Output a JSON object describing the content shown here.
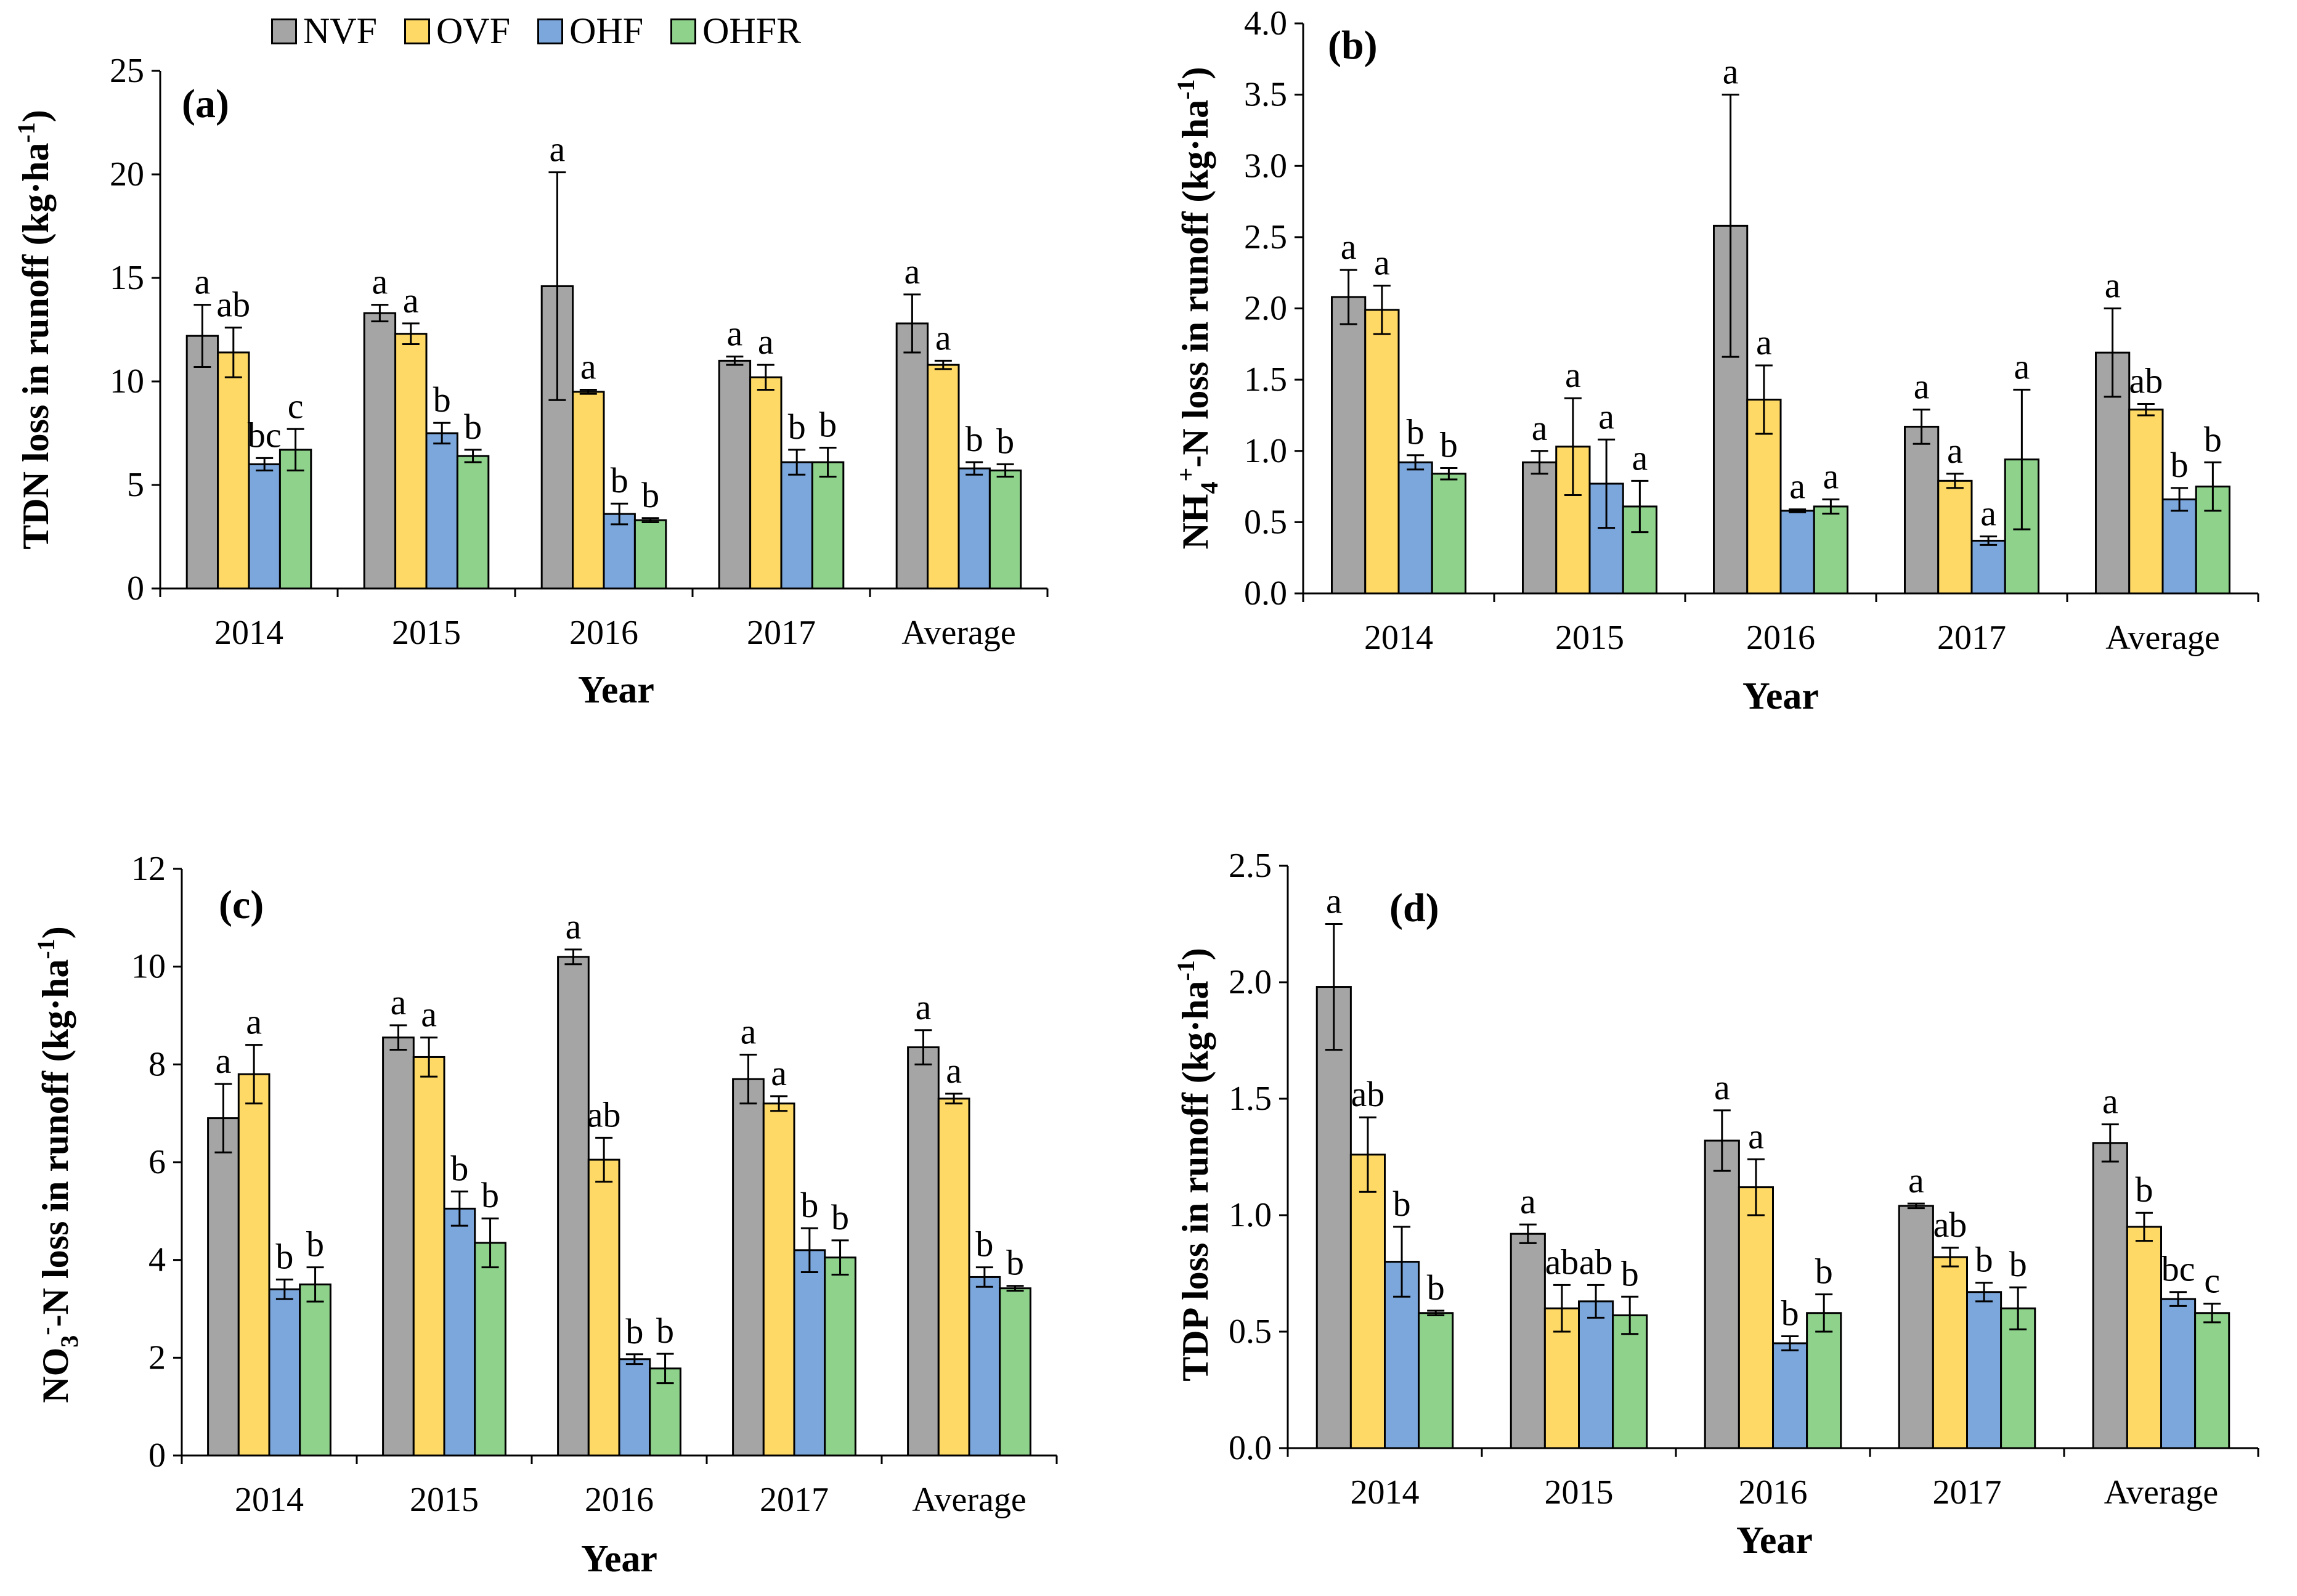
{
  "legend": {
    "items": [
      {
        "name": "NVF",
        "color": "#A5A5A5"
      },
      {
        "name": "OVF",
        "color": "#FFD965"
      },
      {
        "name": "OHF",
        "color": "#7CA7DD"
      },
      {
        "name": "OHFR",
        "color": "#8FD28C"
      }
    ]
  },
  "chart_data": [
    {
      "id": "a",
      "type": "bar",
      "panel_label": "(a)",
      "title": "",
      "ylabel_parts": [
        "TDN loss in runoff (kg·ha",
        "-1",
        ")"
      ],
      "xlabel": "Year",
      "categories": [
        "2014",
        "2015",
        "2016",
        "2017",
        "Average"
      ],
      "ylim": [
        0,
        25
      ],
      "yticks": [
        0,
        5,
        10,
        15,
        20,
        25
      ],
      "ytick_labels": [
        "0",
        "5",
        "10",
        "15",
        "20",
        "25"
      ],
      "series": [
        {
          "name": "NVF",
          "values": [
            12.2,
            13.3,
            14.6,
            11.0,
            12.8
          ],
          "errors": [
            1.5,
            0.4,
            5.5,
            0.2,
            1.4
          ],
          "letters": [
            "a",
            "a",
            "a",
            "a",
            "a"
          ]
        },
        {
          "name": "OVF",
          "values": [
            11.4,
            12.3,
            9.5,
            10.2,
            10.8
          ],
          "errors": [
            1.2,
            0.5,
            0.1,
            0.6,
            0.2
          ],
          "letters": [
            "ab",
            "a",
            "a",
            "a",
            "a"
          ]
        },
        {
          "name": "OHF",
          "values": [
            6.0,
            7.5,
            3.6,
            6.1,
            5.8
          ],
          "errors": [
            0.3,
            0.5,
            0.5,
            0.6,
            0.3
          ],
          "letters": [
            "bc",
            "b",
            "b",
            "b",
            "b"
          ]
        },
        {
          "name": "OHFR",
          "values": [
            6.7,
            6.4,
            3.3,
            6.1,
            5.7
          ],
          "errors": [
            1.0,
            0.3,
            0.1,
            0.7,
            0.3
          ],
          "letters": [
            "c",
            "b",
            "b",
            "b",
            "b"
          ]
        }
      ]
    },
    {
      "id": "b",
      "type": "bar",
      "panel_label": "(b)",
      "title": "",
      "ylabel_parts": [
        "NH",
        "4",
        "+",
        "-N loss in runoff (kg·ha",
        "-1",
        ")"
      ],
      "xlabel": "Year",
      "categories": [
        "2014",
        "2015",
        "2016",
        "2017",
        "Average"
      ],
      "ylim": [
        0,
        4
      ],
      "yticks": [
        0,
        0.5,
        1,
        1.5,
        2,
        2.5,
        3,
        3.5,
        4
      ],
      "ytick_labels": [
        "0.0",
        "0.5",
        "1.0",
        "1.5",
        "2.0",
        "2.5",
        "3.0",
        "3.5",
        "4.0"
      ],
      "series": [
        {
          "name": "NVF",
          "values": [
            2.08,
            0.92,
            2.58,
            1.17,
            1.69
          ],
          "errors": [
            0.19,
            0.08,
            0.92,
            0.12,
            0.31
          ],
          "letters": [
            "a",
            "a",
            "a",
            "a",
            "a"
          ]
        },
        {
          "name": "OVF",
          "values": [
            1.99,
            1.03,
            1.36,
            0.79,
            1.29
          ],
          "errors": [
            0.17,
            0.34,
            0.24,
            0.05,
            0.04
          ],
          "letters": [
            "a",
            "a",
            "a",
            "a",
            "ab"
          ]
        },
        {
          "name": "OHF",
          "values": [
            0.92,
            0.77,
            0.58,
            0.37,
            0.66
          ],
          "errors": [
            0.05,
            0.31,
            0.01,
            0.03,
            0.08
          ],
          "letters": [
            "b",
            "a",
            "a",
            "a",
            "b"
          ]
        },
        {
          "name": "OHFR",
          "values": [
            0.84,
            0.61,
            0.61,
            0.94,
            0.75
          ],
          "errors": [
            0.04,
            0.18,
            0.05,
            0.49,
            0.17
          ],
          "letters": [
            "b",
            "a",
            "a",
            "a",
            "b"
          ]
        }
      ]
    },
    {
      "id": "c",
      "type": "bar",
      "panel_label": "(c)",
      "title": "",
      "ylabel_parts": [
        "NO",
        "3",
        "-",
        "-N loss in runoff (kg·ha",
        "-1",
        ")"
      ],
      "xlabel": "Year",
      "categories": [
        "2014",
        "2015",
        "2016",
        "2017",
        "Average"
      ],
      "ylim": [
        0,
        12
      ],
      "yticks": [
        0,
        2,
        4,
        6,
        8,
        10,
        12
      ],
      "ytick_labels": [
        "0",
        "2",
        "4",
        "6",
        "8",
        "10",
        "12"
      ],
      "series": [
        {
          "name": "NVF",
          "values": [
            6.9,
            8.55,
            10.2,
            7.7,
            8.35
          ],
          "errors": [
            0.7,
            0.25,
            0.15,
            0.5,
            0.35
          ],
          "letters": [
            "a",
            "a",
            "a",
            "a",
            "a"
          ]
        },
        {
          "name": "OVF",
          "values": [
            7.8,
            8.15,
            6.05,
            7.2,
            7.3
          ],
          "errors": [
            0.6,
            0.4,
            0.45,
            0.15,
            0.1
          ],
          "letters": [
            "a",
            "a",
            "ab",
            "a",
            "a"
          ]
        },
        {
          "name": "OHF",
          "values": [
            3.4,
            5.05,
            1.97,
            4.2,
            3.65
          ],
          "errors": [
            0.2,
            0.35,
            0.1,
            0.45,
            0.2
          ],
          "letters": [
            "b",
            "b",
            "b",
            "b",
            "b"
          ]
        },
        {
          "name": "OHFR",
          "values": [
            3.5,
            4.35,
            1.78,
            4.05,
            3.42
          ],
          "errors": [
            0.35,
            0.5,
            0.3,
            0.35,
            0.05
          ],
          "letters": [
            "b",
            "b",
            "b",
            "b",
            "b"
          ]
        }
      ]
    },
    {
      "id": "d",
      "type": "bar",
      "panel_label": "(d)",
      "title": "",
      "ylabel_parts": [
        "TDP loss in runoff (kg·ha",
        "-1",
        ")"
      ],
      "xlabel": "Year",
      "categories": [
        "2014",
        "2015",
        "2016",
        "2017",
        "Average"
      ],
      "ylim": [
        0,
        2.5
      ],
      "yticks": [
        0,
        0.5,
        1,
        1.5,
        2,
        2.5
      ],
      "ytick_labels": [
        "0.0",
        "0.5",
        "1.0",
        "1.5",
        "2.0",
        "2.5"
      ],
      "series": [
        {
          "name": "NVF",
          "values": [
            1.98,
            0.92,
            1.32,
            1.04,
            1.31
          ],
          "errors": [
            0.27,
            0.04,
            0.13,
            0.01,
            0.08
          ],
          "letters": [
            "a",
            "a",
            "a",
            "a",
            "a"
          ]
        },
        {
          "name": "OVF",
          "values": [
            1.26,
            0.6,
            1.12,
            0.82,
            0.95
          ],
          "errors": [
            0.16,
            0.1,
            0.12,
            0.04,
            0.06
          ],
          "letters": [
            "ab",
            "ab",
            "a",
            "ab",
            "b"
          ]
        },
        {
          "name": "OHF",
          "values": [
            0.8,
            0.63,
            0.45,
            0.67,
            0.64
          ],
          "errors": [
            0.15,
            0.07,
            0.03,
            0.04,
            0.03
          ],
          "letters": [
            "b",
            "ab",
            "b",
            "b",
            "bc"
          ]
        },
        {
          "name": "OHFR",
          "values": [
            0.58,
            0.57,
            0.58,
            0.6,
            0.58
          ],
          "errors": [
            0.01,
            0.08,
            0.08,
            0.09,
            0.04
          ],
          "letters": [
            "b",
            "b",
            "b",
            "b",
            "c"
          ]
        }
      ]
    }
  ]
}
